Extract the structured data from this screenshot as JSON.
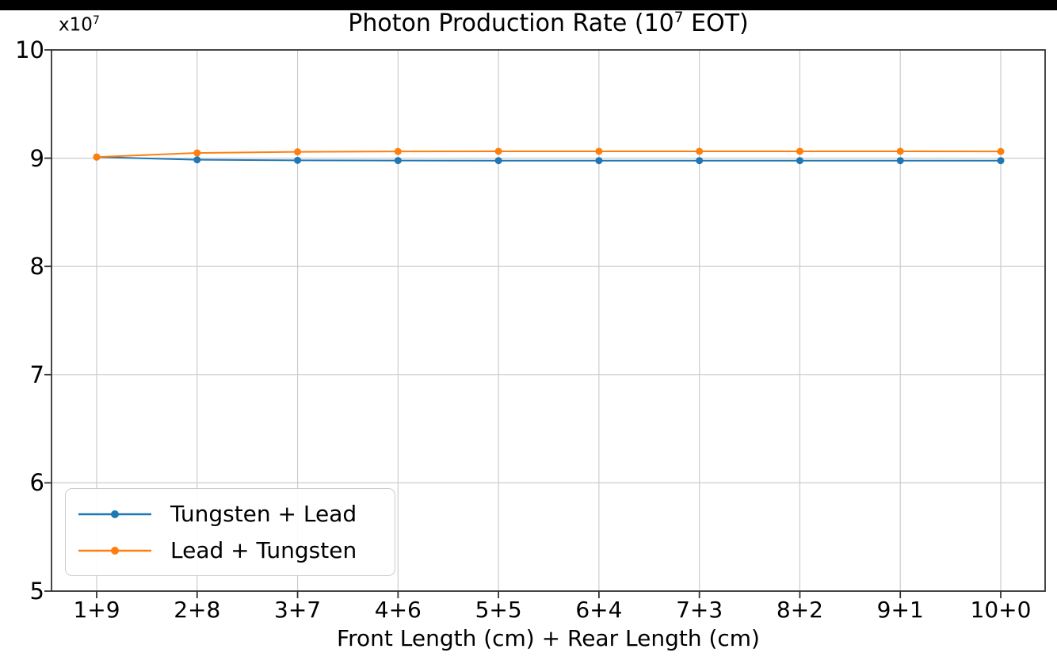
{
  "page": {
    "background_color": "#ffffff",
    "top_bar_color": "#000000"
  },
  "chart_data": {
    "type": "line",
    "title": {
      "full": "Photon Production Rate (10^7 EOT)",
      "prefix": "Photon Production Rate (10",
      "superscript": "7",
      "suffix": " EOT)"
    },
    "y_offset_text": {
      "prefix": "x10",
      "superscript": "7"
    },
    "xlabel": "Front Length (cm) + Rear Length (cm)",
    "ylabel": "",
    "categories": [
      "1+9",
      "2+8",
      "3+7",
      "4+6",
      "5+5",
      "6+4",
      "7+3",
      "8+2",
      "9+1",
      "10+0"
    ],
    "series": [
      {
        "name": "Tungsten + Lead",
        "color": "#1f77b4",
        "marker": "circle",
        "values": [
          9.01,
          8.985,
          8.98,
          8.978,
          8.977,
          8.977,
          8.977,
          8.977,
          8.977,
          8.977
        ]
      },
      {
        "name": "Lead + Tungsten",
        "color": "#ff7f0e",
        "marker": "circle",
        "values": [
          9.01,
          9.048,
          9.058,
          9.062,
          9.063,
          9.063,
          9.063,
          9.063,
          9.063,
          9.062
        ]
      }
    ],
    "ylim": [
      5,
      10
    ],
    "yticks": [
      5,
      6,
      7,
      8,
      9,
      10
    ],
    "units_multiplier": "1e7",
    "grid": true,
    "grid_color": "#cccccc",
    "spine_color": "#333333",
    "legend_position": "lower left"
  }
}
